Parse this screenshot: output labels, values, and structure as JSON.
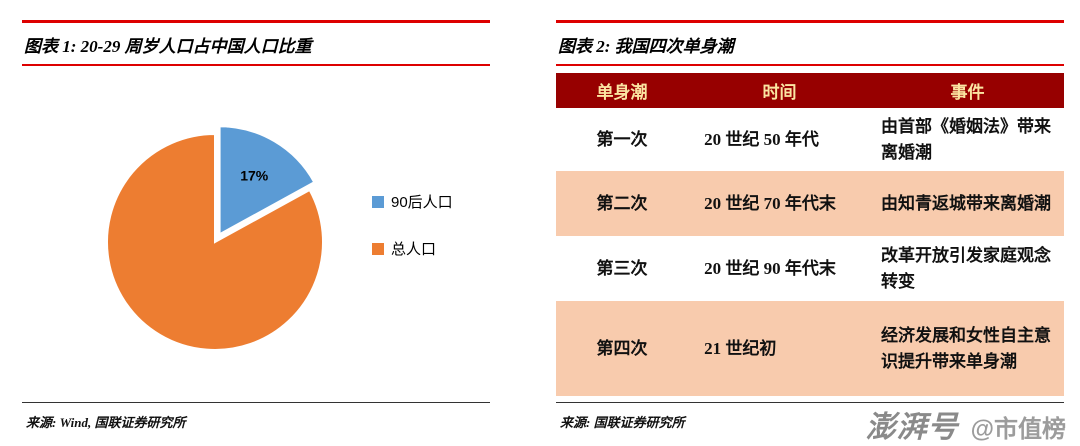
{
  "colors": {
    "accent_red": "#DD0000",
    "pie_blue": "#5B9BD5",
    "pie_orange": "#ED7D31",
    "table_header_bg": "#970000",
    "table_header_text": "#FBE5A2",
    "table_alt_row_bg": "#F8CBAD"
  },
  "left_panel": {
    "title": "图表 1: 20-29 周岁人口占中国人口比重",
    "source": "来源: Wind, 国联证券研究所"
  },
  "right_panel": {
    "title": "图表 2: 我国四次单身潮",
    "source": "来源: 国联证券研究所",
    "table": {
      "headers": [
        "单身潮",
        "时间",
        "事件"
      ],
      "rows": [
        [
          "第一次",
          "20 世纪 50 年代",
          "由首部《婚姻法》带来离婚潮"
        ],
        [
          "第二次",
          "20 世纪 70 年代末",
          "由知青返城带来离婚潮"
        ],
        [
          "第三次",
          "20 世纪 90 年代末",
          "改革开放引发家庭观念转变"
        ],
        [
          "第四次",
          "21 世纪初",
          "经济发展和女性自主意识提升带来单身潮"
        ]
      ]
    }
  },
  "watermark": {
    "logo": "澎湃号",
    "handle": "@市值榜"
  },
  "chart_data": [
    {
      "type": "pie",
      "title": "图表 1: 20-29 周岁人口占中国人口比重",
      "labels": [
        "90后人口",
        "总人口"
      ],
      "values": [
        17,
        83
      ],
      "unit": "percent",
      "colors": [
        "#5B9BD5",
        "#ED7D31"
      ],
      "data_labels": [
        "17%",
        ""
      ],
      "start_angle_deg": 0,
      "direction": "clockwise",
      "exploded": [
        true,
        false
      ],
      "legend_position": "right"
    },
    {
      "type": "table",
      "title": "图表 2: 我国四次单身潮",
      "headers": [
        "单身潮",
        "时间",
        "事件"
      ],
      "rows": [
        [
          "第一次",
          "20 世纪 50 年代",
          "由首部《婚姻法》带来离婚潮"
        ],
        [
          "第二次",
          "20 世纪 70 年代末",
          "由知青返城带来离婚潮"
        ],
        [
          "第三次",
          "20 世纪 90 年代末",
          "改革开放引发家庭观念转变"
        ],
        [
          "第四次",
          "21 世纪初",
          "经济发展和女性自主意识提升带来单身潮"
        ]
      ]
    }
  ]
}
